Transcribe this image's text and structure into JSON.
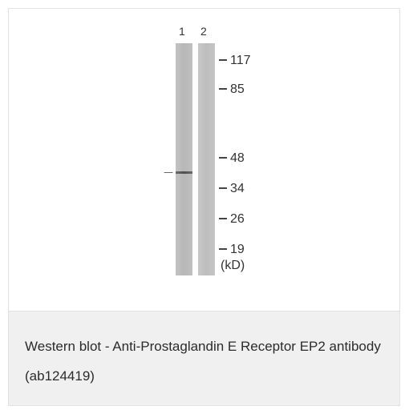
{
  "figure": {
    "lane_labels": [
      "1",
      "2"
    ],
    "markers": [
      {
        "label": "117"
      },
      {
        "label": "85"
      },
      {
        "label": "48"
      },
      {
        "label": "34"
      },
      {
        "label": "26"
      },
      {
        "label": "19"
      }
    ],
    "unit_label": "(kD)"
  },
  "caption": {
    "text": "Western blot - Anti-Prostaglandin E Receptor EP2 antibody (ab124419)"
  }
}
